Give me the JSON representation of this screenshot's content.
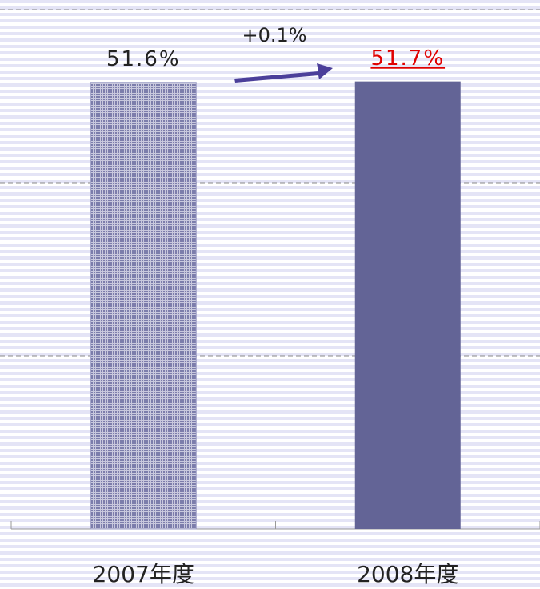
{
  "chart_data": {
    "type": "bar",
    "categories": [
      "2007年度",
      "2008年度"
    ],
    "values": [
      51.6,
      51.7
    ],
    "value_labels": [
      "51.6%",
      "51.7%"
    ],
    "colors": [
      "#9b9cc4",
      "#636496"
    ],
    "label_colors": [
      "#222222",
      "#e00000"
    ],
    "annotation": "+0.1%",
    "ylim": [
      0,
      60
    ],
    "yticks": [
      20,
      40,
      60
    ],
    "grid": true
  }
}
